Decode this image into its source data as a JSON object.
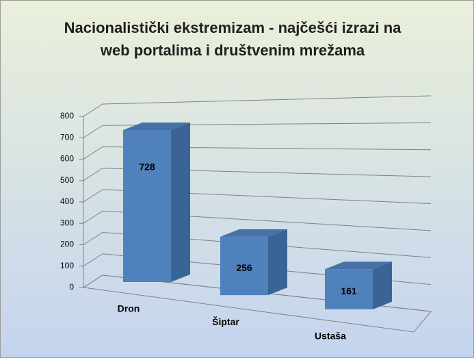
{
  "chart_data": {
    "type": "bar3d",
    "title": "Nacionalistički ekstremizam - najčešći izrazi na web portalima i društvenim mrežama",
    "categories": [
      "Dron",
      "Šiptar",
      "Ustaša"
    ],
    "values": [
      728,
      256,
      161
    ],
    "color": "#4f81bd",
    "ylim": [
      0,
      800
    ],
    "yticks": [
      0,
      100,
      200,
      300,
      400,
      500,
      600,
      700,
      800
    ],
    "grid": true
  }
}
